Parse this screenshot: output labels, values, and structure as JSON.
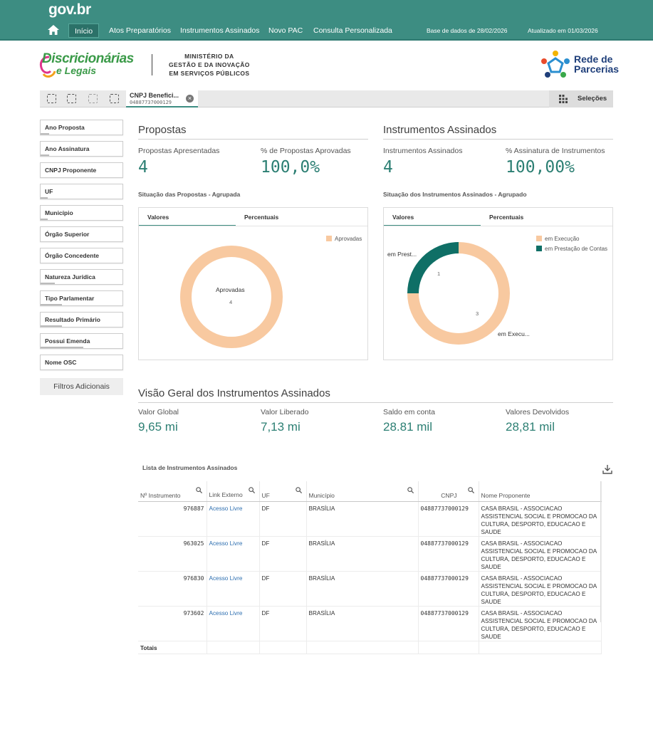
{
  "header": {
    "logo": "gov.br",
    "nav": [
      {
        "label": "Início",
        "active": true
      },
      {
        "label": "Atos Preparatórios"
      },
      {
        "label": "Instrumentos Assinados"
      },
      {
        "label": "Novo PAC"
      },
      {
        "label": "Consulta Personalizada"
      }
    ],
    "database_date": "Base de dados de 28/02/2026",
    "updated_date": "Atualizado em 01/03/2026"
  },
  "brand": {
    "title": "Discricionárias",
    "subtitle": "e Legais",
    "ministry_line1": "MINISTÉRIO DA",
    "ministry_line2": "GESTÃO E DA INOVAÇÃO",
    "ministry_line3": "EM SERVIÇOS PÚBLICOS",
    "partner_line1": "Rede de",
    "partner_line2": "Parcerias"
  },
  "toolbar": {
    "selection_title": "CNPJ Benefici...",
    "selection_value": "04887737000129",
    "selections_label": "Seleções"
  },
  "filters": [
    "Ano Proposta",
    "Ano Assinatura",
    "CNPJ Proponente",
    "UF",
    "Município",
    "Órgão Superior",
    "Órgão Concedente",
    "Natureza Jurídica",
    "Tipo Parlamentar",
    "Resultado Primário",
    "Possui Emenda",
    "Nome OSC"
  ],
  "filters_more": "Filtros Adicionais",
  "propostas": {
    "title": "Propostas",
    "kpi1_label": "Propostas Apresentadas",
    "kpi1_value": "4",
    "kpi2_label": "% de Propostas Aprovadas",
    "kpi2_value": "100,0%",
    "chart_title": "Situação das Propostas - Agrupada",
    "tab_values": "Valores",
    "tab_percent": "Percentuais",
    "legend": "Aprovadas",
    "center_label": "Aprovadas",
    "center_value": "4"
  },
  "instrumentos": {
    "title": "Instrumentos Assinados",
    "kpi1_label": "Instrumentos Assinados",
    "kpi1_value": "4",
    "kpi2_label": "% Assinatura de Instrumentos",
    "kpi2_value": "100,00%",
    "chart_title": "Situação dos Instrumentos Assinados - Agrupado",
    "tab_values": "Valores",
    "tab_percent": "Percentuais",
    "legend1": "em Execução",
    "legend2": "em Prestação de Contas",
    "label_prest": "em Prest...",
    "label_exec": "em Execu...",
    "value_prest": "1",
    "value_exec": "3"
  },
  "chart_data": [
    {
      "type": "pie",
      "title": "Situação das Propostas - Agrupada",
      "categories": [
        "Aprovadas"
      ],
      "values": [
        4
      ],
      "colors": [
        "#f8c9a0"
      ]
    },
    {
      "type": "pie",
      "title": "Situação dos Instrumentos Assinados - Agrupado",
      "categories": [
        "em Execução",
        "em Prestação de Contas"
      ],
      "values": [
        3,
        1
      ],
      "colors": [
        "#f8c9a0",
        "#0f6f66"
      ]
    }
  ],
  "overview": {
    "title": "Visão Geral dos Instrumentos Assinados",
    "items": [
      {
        "label": "Valor Global",
        "value": "9,65 mi"
      },
      {
        "label": "Valor Liberado",
        "value": "7,13 mi"
      },
      {
        "label": "Saldo em conta",
        "value": "28.81 mil"
      },
      {
        "label": "Valores Devolvidos",
        "value": "28,81 mil"
      }
    ]
  },
  "table": {
    "title": "Lista de Instrumentos Assinados",
    "headers": [
      "Nº Instrumento",
      "Link Externo",
      "UF",
      "Município",
      "CNPJ",
      "Nome Proponente"
    ],
    "rows": [
      {
        "num": "976887",
        "link": "Acesso Livre",
        "uf": "DF",
        "mun": "BRASÍLIA",
        "cnpj": "04887737000129",
        "nome": "CASA BRASIL - ASSOCIACAO ASSISTENCIAL SOCIAL E PROMOCAO DA CULTURA, DESPORTO, EDUCACAO E SAUDE"
      },
      {
        "num": "963025",
        "link": "Acesso Livre",
        "uf": "DF",
        "mun": "BRASÍLIA",
        "cnpj": "04887737000129",
        "nome": "CASA BRASIL - ASSOCIACAO ASSISTENCIAL SOCIAL E PROMOCAO DA CULTURA, DESPORTO, EDUCACAO E SAUDE"
      },
      {
        "num": "976830",
        "link": "Acesso Livre",
        "uf": "DF",
        "mun": "BRASÍLIA",
        "cnpj": "04887737000129",
        "nome": "CASA BRASIL - ASSOCIACAO ASSISTENCIAL SOCIAL E PROMOCAO DA CULTURA, DESPORTO, EDUCACAO E SAUDE"
      },
      {
        "num": "973602",
        "link": "Acesso Livre",
        "uf": "DF",
        "mun": "BRASÍLIA",
        "cnpj": "04887737000129",
        "nome": "CASA BRASIL - ASSOCIACAO ASSISTENCIAL SOCIAL E PROMOCAO DA CULTURA, DESPORTO, EDUCACAO E SAUDE"
      }
    ],
    "totals_label": "Totais"
  }
}
